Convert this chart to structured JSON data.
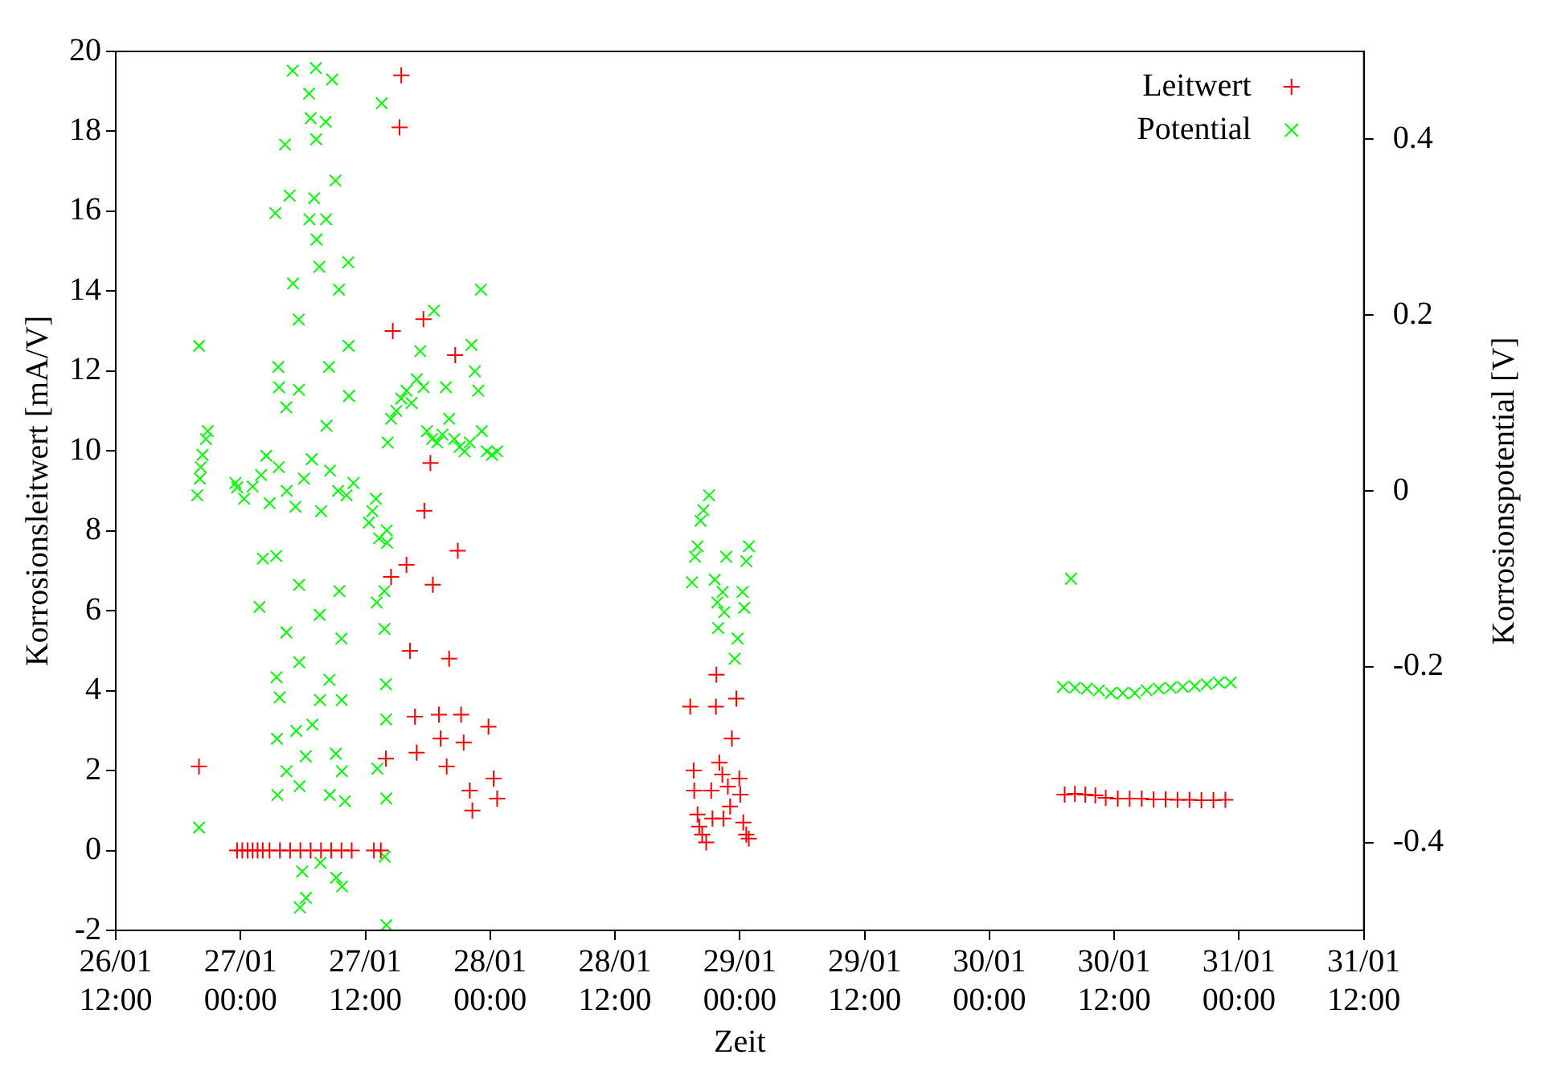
{
  "chart_data": {
    "type": "scatter",
    "xlabel": "Zeit",
    "ylabel": "Korrosionsleitwert [mA/V]",
    "y2label": "Korrosionspotential [V]",
    "legend": "top right",
    "marker": "cross",
    "xlim": [
      "--01-26T12:00",
      "--01-31T12:00"
    ],
    "xticks": [
      {
        "value": "--01-26T12:00",
        "label": "26/01 12:00"
      },
      {
        "value": "--01-27T00:00",
        "label": "27/01 00:00"
      },
      {
        "value": "--01-27T12:00",
        "label": "27/01 12:00"
      },
      {
        "value": "--01-28T00:00",
        "label": "28/01 00:00"
      },
      {
        "value": "--01-28T12:00",
        "label": "28/01 12:00"
      },
      {
        "value": "--01-29T00:00",
        "label": "29/01 00:00"
      },
      {
        "value": "--01-29T12:00",
        "label": "29/01 12:00"
      },
      {
        "value": "--01-30T00:00",
        "label": "30/01 00:00"
      },
      {
        "value": "--01-30T12:00",
        "label": "30/01 12:00"
      },
      {
        "value": "--01-31T00:00",
        "label": "31/01 00:00"
      },
      {
        "value": "--01-31T12:00",
        "label": "31/01 12:00"
      }
    ],
    "ylim": [
      -2,
      20
    ],
    "yticks": [
      -2,
      0,
      2,
      4,
      6,
      8,
      10,
      12,
      14,
      16,
      18,
      20
    ],
    "y2lim": [
      -0.5,
      0.5
    ],
    "y2ticks": [
      -0.4,
      -0.2,
      0,
      0.2,
      0.4
    ],
    "series": [
      {
        "name": "Leitwert",
        "color": "#ff0000",
        "x": [
          "--01-26T20:00",
          "--01-26T23:40",
          "--01-27T00:10",
          "--01-27T00:40",
          "--01-27T01:09",
          "--01-27T01:38",
          "--01-27T02:08",
          "--01-27T02:47",
          "--01-27T03:47",
          "--01-27T04:46",
          "--01-27T05:45",
          "--01-27T06:44",
          "--01-27T07:44",
          "--01-27T08:43",
          "--01-27T09:42",
          "--01-27T10:41",
          "--01-27T12:49",
          "--01-27T13:29",
          "--01-27T13:58",
          "--01-27T14:28",
          "--01-27T14:38",
          "--01-27T15:17",
          "--01-27T15:27",
          "--01-27T15:57",
          "--01-27T16:17",
          "--01-27T16:46",
          "--01-27T16:56",
          "--01-27T17:35",
          "--01-27T17:40",
          "--01-27T18:15",
          "--01-27T18:29",
          "--01-27T19:04",
          "--01-27T19:14",
          "--01-27T19:49",
          "--01-27T20:03",
          "--01-27T20:38",
          "--01-27T20:53",
          "--01-27T21:12",
          "--01-27T21:27",
          "--01-27T22:02",
          "--01-27T22:17",
          "--01-27T23:50",
          "--01-28T00:20",
          "--01-28T00:40",
          "--01-28T19:14",
          "--01-28T19:34",
          "--01-28T19:37",
          "--01-28T19:56",
          "--01-28T20:06",
          "--01-28T20:23",
          "--01-28T20:46",
          "--01-28T21:15",
          "--01-28T21:22",
          "--01-28T21:42",
          "--01-28T21:45",
          "--01-28T22:02",
          "--01-28T22:19",
          "--01-28T22:25",
          "--01-28T22:51",
          "--01-28T23:04",
          "--01-28T23:14",
          "--01-28T23:40",
          "--01-28T23:57",
          "--01-29T00:03",
          "--01-29T00:20",
          "--01-29T00:37",
          "--01-29T00:52",
          "--01-30T07:14",
          "--01-30T08:13",
          "--01-30T09:13",
          "--01-30T10:11",
          "--01-30T11:11",
          "--01-30T12:20",
          "--01-30T13:29",
          "--01-30T14:38",
          "--01-30T15:47",
          "--01-30T16:56",
          "--01-30T18:05",
          "--01-30T19:14",
          "--01-30T20:23",
          "--01-30T21:32",
          "--01-30T22:41"
        ],
        "values": [
          2.1,
          0,
          0,
          0,
          0,
          0,
          0,
          0,
          0,
          0,
          0,
          0,
          0,
          0,
          0,
          0,
          0,
          0,
          2.3,
          6.85,
          13.0,
          18.1,
          19.4,
          7.15,
          5.0,
          3.35,
          2.45,
          13.3,
          8.5,
          9.7,
          6.65,
          3.4,
          2.8,
          2.1,
          4.8,
          12.4,
          7.5,
          3.4,
          2.7,
          1.5,
          1.0,
          3.1,
          1.8,
          1.3,
          3.6,
          2.0,
          1.5,
          0.9,
          0.6,
          0.4,
          0.2,
          1.5,
          0.8,
          3.6,
          4.4,
          2.2,
          1.9,
          0.8,
          1.6,
          1.1,
          2.8,
          3.8,
          1.8,
          1.4,
          0.7,
          0.4,
          0.3,
          1.4,
          1.42,
          1.4,
          1.38,
          1.32,
          1.3,
          1.3,
          1.3,
          1.28,
          1.28,
          1.27,
          1.27,
          1.26,
          1.26,
          1.27
        ]
      },
      {
        "name": "Potential",
        "color": "#00ff00",
        "axis": "y2",
        "x": [
          "--01-26T19:50",
          "--01-26T20:00",
          "--01-26T20:00",
          "--01-26T20:05",
          "--01-26T20:10",
          "--01-26T20:20",
          "--01-26T20:40",
          "--01-26T20:50",
          "--01-26T23:30",
          "--01-26T23:40",
          "--01-27T00:20",
          "--01-27T01:09",
          "--01-27T01:49",
          "--01-27T01:58",
          "--01-27T02:08",
          "--01-27T02:28",
          "--01-27T02:47",
          "--01-27T03:20",
          "--01-27T03:25",
          "--01-27T03:27",
          "--01-27T03:30",
          "--01-27T03:32",
          "--01-27T03:37",
          "--01-27T03:40",
          "--01-27T03:42",
          "--01-27T03:45",
          "--01-27T04:16",
          "--01-27T04:23",
          "--01-27T04:24",
          "--01-27T04:25",
          "--01-27T04:26",
          "--01-27T04:42",
          "--01-27T05:00",
          "--01-27T05:02",
          "--01-27T05:16",
          "--01-27T05:21",
          "--01-27T05:35",
          "--01-27T05:36",
          "--01-27T05:37",
          "--01-27T05:38",
          "--01-27T05:40",
          "--01-27T05:42",
          "--01-27T05:55",
          "--01-27T06:05",
          "--01-27T06:15",
          "--01-27T06:17",
          "--01-27T06:35",
          "--01-27T06:37",
          "--01-27T06:44",
          "--01-27T06:50",
          "--01-27T06:54",
          "--01-27T07:04",
          "--01-27T07:14",
          "--01-27T07:16",
          "--01-27T07:18",
          "--01-27T07:34",
          "--01-27T07:36",
          "--01-27T07:38",
          "--01-27T07:40",
          "--01-27T07:44",
          "--01-27T08:11",
          "--01-27T08:13",
          "--01-27T08:15",
          "--01-27T08:30",
          "--01-27T08:32",
          "--01-27T08:34",
          "--01-27T08:36",
          "--01-27T08:48",
          "--01-27T09:07",
          "--01-27T09:09",
          "--01-27T09:11",
          "--01-27T09:22",
          "--01-27T09:27",
          "--01-27T09:29",
          "--01-27T09:42",
          "--01-27T09:43",
          "--01-27T09:44",
          "--01-27T09:45",
          "--01-27T10:02",
          "--01-27T10:11",
          "--01-27T10:21",
          "--01-27T10:23",
          "--01-27T10:25",
          "--01-27T10:51",
          "--01-27T12:20",
          "--01-27T12:40",
          "--01-27T13:00",
          "--01-27T13:05",
          "--01-27T13:09",
          "--01-27T13:19",
          "--01-27T13:34",
          "--01-27T13:49",
          "--01-27T13:50",
          "--01-27T13:51",
          "--01-27T13:58",
          "--01-27T13:59",
          "--01-27T14:00",
          "--01-27T14:01",
          "--01-27T14:03",
          "--01-27T14:05",
          "--01-27T14:08",
          "--01-27T14:28",
          "--01-27T14:58",
          "--01-27T15:27",
          "--01-27T15:57",
          "--01-27T16:26",
          "--01-27T16:56",
          "--01-27T17:16",
          "--01-27T17:35",
          "--01-27T17:55",
          "--01-27T18:25",
          "--01-27T18:35",
          "--01-27T18:54",
          "--01-27T19:24",
          "--01-27T19:44",
          "--01-27T20:03",
          "--01-27T20:33",
          "--01-27T21:03",
          "--01-27T21:32",
          "--01-27T22:02",
          "--01-27T22:12",
          "--01-27T22:31",
          "--01-27T22:51",
          "--01-27T23:06",
          "--01-27T23:11",
          "--01-27T23:40",
          "--01-28T00:10",
          "--01-28T00:40",
          "--01-28T19:24",
          "--01-28T19:41",
          "--01-28T19:56",
          "--01-28T20:13",
          "--01-28T20:30",
          "--01-28T21:02",
          "--01-28T21:35",
          "--01-28T21:50",
          "--01-28T21:55",
          "--01-28T22:20",
          "--01-28T22:30",
          "--01-28T22:41",
          "--01-28T23:30",
          "--01-28T23:47",
          "--01-29T00:15",
          "--01-29T00:25",
          "--01-29T00:37",
          "--01-29T00:52",
          "--01-30T07:04",
          "--01-30T07:50",
          "--01-30T08:13",
          "--01-30T09:22",
          "--01-30T10:31",
          "--01-30T11:40",
          "--01-30T12:49",
          "--01-30T13:58",
          "--01-30T15:07",
          "--01-30T16:16",
          "--01-30T17:25",
          "--01-30T18:35",
          "--01-30T19:44",
          "--01-30T20:53",
          "--01-30T22:02",
          "--01-30T23:11"
        ],
        "values": [
          -0.005,
          0.165,
          -0.383,
          0.014,
          0.027,
          0.041,
          0.059,
          0.068,
          0.009,
          0.004,
          -0.009,
          0.005,
          -0.132,
          0.018,
          -0.077,
          0.04,
          -0.014,
          0.316,
          -0.074,
          -0.212,
          -0.282,
          -0.346,
          0.141,
          0.027,
          0.118,
          -0.235,
          0.394,
          0.095,
          -0.161,
          -0.319,
          0,
          0.336,
          0.478,
          0.236,
          -0.018,
          -0.273,
          0.195,
          0.115,
          -0.107,
          -0.195,
          -0.336,
          -0.474,
          -0.433,
          0.014,
          -0.302,
          -0.463,
          0.452,
          0.309,
          0.424,
          0.036,
          -0.266,
          0.333,
          0.481,
          0.4,
          0.286,
          0.255,
          -0.141,
          -0.238,
          -0.423,
          -0.023,
          0.42,
          0.309,
          0.074,
          0.141,
          -0.215,
          -0.346,
          0.023,
          0.468,
          0.353,
          -0.299,
          -0.44,
          0,
          0.229,
          -0.114,
          -0.168,
          -0.238,
          -0.319,
          -0.45,
          -0.353,
          -0.005,
          0.26,
          0.165,
          0.108,
          0.009,
          -0.036,
          -0.023,
          -0.009,
          -0.127,
          -0.316,
          -0.054,
          0.441,
          -0.114,
          -0.157,
          -0.416,
          -0.22,
          -0.26,
          -0.35,
          -0.494,
          -0.045,
          -0.059,
          0.055,
          0.082,
          0.091,
          0.105,
          0.114,
          0.1,
          0.127,
          0.159,
          0.118,
          0.068,
          0.059,
          0.205,
          0.055,
          0.064,
          0.118,
          0.082,
          0.059,
          0.05,
          0.045,
          0.055,
          0.166,
          0.136,
          0.114,
          0.229,
          0.068,
          0.045,
          0.041,
          0.045,
          -0.104,
          -0.075,
          -0.063,
          -0.034,
          -0.022,
          -0.005,
          -0.101,
          -0.127,
          -0.156,
          -0.115,
          -0.138,
          -0.075,
          -0.191,
          -0.168,
          -0.115,
          -0.133,
          -0.08,
          -0.063,
          -0.223,
          -0.1,
          -0.224,
          -0.225,
          -0.227,
          -0.23,
          -0.23,
          -0.23,
          -0.227,
          -0.225,
          -0.224,
          -0.223,
          -0.222,
          -0.22,
          -0.218,
          -0.218
        ]
      }
    ]
  }
}
